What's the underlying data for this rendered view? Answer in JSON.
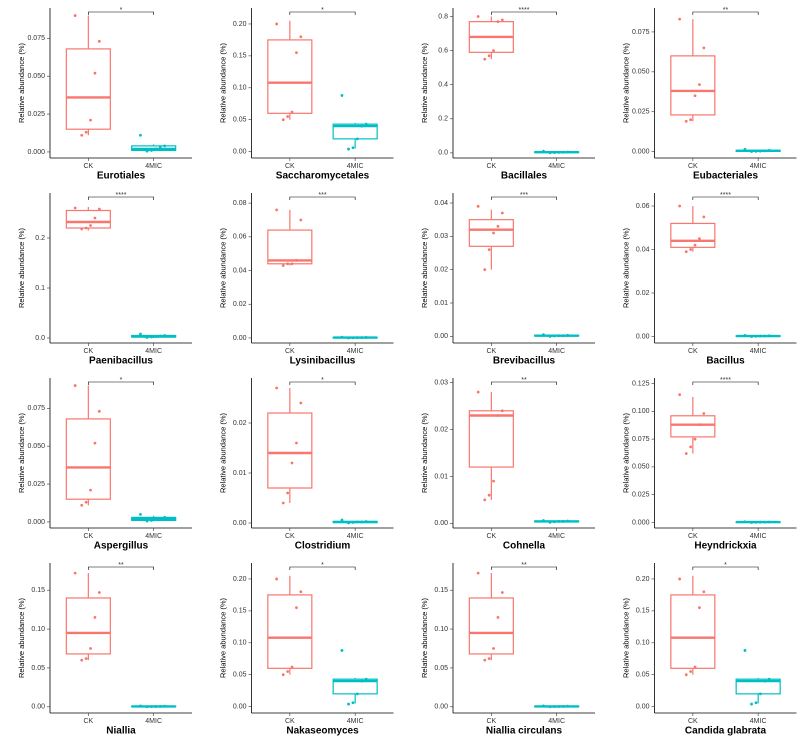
{
  "chart_data": [
    {
      "type": "box",
      "title": "Eurotiales",
      "y_label": "Relative abundance (%)",
      "categories": [
        "CK",
        "4MIC"
      ],
      "colors": [
        "#f8766d",
        "#00bfc4"
      ],
      "significance": "*",
      "ylim": [
        -0.004,
        0.095
      ],
      "yticks": [
        {
          "value": 0,
          "label": "0.000"
        },
        0.025,
        {
          "value": 0.05,
          "label": "0.050"
        },
        0.075
      ],
      "boxes": [
        {
          "min": 0.011,
          "q1": 0.015,
          "median": 0.036,
          "q3": 0.068,
          "max": 0.09,
          "points": [
            0.09,
            0.073,
            0.052,
            0.021,
            0.013,
            0.011
          ]
        },
        {
          "min": 0.0005,
          "q1": 0.001,
          "median": 0.002,
          "q3": 0.004,
          "max": 0.005,
          "points": [
            0.011,
            0.004,
            0.003,
            0.002,
            0.001,
            0.0005
          ]
        }
      ]
    },
    {
      "type": "box",
      "title": "Saccharomycetales",
      "y_label": "Relative abundance (%)",
      "categories": [
        "CK",
        "4MIC"
      ],
      "colors": [
        "#f8766d",
        "#00bfc4"
      ],
      "significance": "*",
      "ylim": [
        -0.01,
        0.225
      ],
      "yticks": [
        {
          "value": 0,
          "label": "0.00"
        },
        0.05,
        {
          "value": 0.1,
          "label": "0.10"
        },
        0.15,
        {
          "value": 0.2,
          "label": "0.20"
        }
      ],
      "boxes": [
        {
          "min": 0.05,
          "q1": 0.06,
          "median": 0.108,
          "q3": 0.175,
          "max": 0.205,
          "points": [
            0.2,
            0.18,
            0.155,
            0.062,
            0.055,
            0.05
          ]
        },
        {
          "min": 0.005,
          "q1": 0.02,
          "median": 0.04,
          "q3": 0.043,
          "max": 0.045,
          "points": [
            0.088,
            0.043,
            0.04,
            0.02,
            0.006,
            0.004
          ]
        }
      ]
    },
    {
      "type": "box",
      "title": "Bacillales",
      "y_label": "Relative abundance (%)",
      "categories": [
        "CK",
        "4MIC"
      ],
      "colors": [
        "#f8766d",
        "#00bfc4"
      ],
      "significance": "****",
      "ylim": [
        -0.03,
        0.85
      ],
      "yticks": [
        {
          "value": 0,
          "label": "0.0"
        },
        0.2,
        0.4,
        0.6,
        0.8
      ],
      "boxes": [
        {
          "min": 0.55,
          "q1": 0.59,
          "median": 0.68,
          "q3": 0.77,
          "max": 0.8,
          "points": [
            0.8,
            0.78,
            0.77,
            0.6,
            0.57,
            0.55
          ]
        },
        {
          "min": 0,
          "q1": 0.002,
          "median": 0.004,
          "q3": 0.006,
          "max": 0.008,
          "points": [
            0.01,
            0.005,
            0.004,
            0.003,
            0.002,
            0.001
          ]
        }
      ]
    },
    {
      "type": "box",
      "title": "Eubacteriales",
      "y_label": "Relative abundance (%)",
      "categories": [
        "CK",
        "4MIC"
      ],
      "colors": [
        "#f8766d",
        "#00bfc4"
      ],
      "significance": "**",
      "ylim": [
        -0.004,
        0.09
      ],
      "yticks": [
        {
          "value": 0,
          "label": "0.000"
        },
        0.025,
        {
          "value": 0.05,
          "label": "0.050"
        },
        0.075
      ],
      "boxes": [
        {
          "min": 0.019,
          "q1": 0.023,
          "median": 0.038,
          "q3": 0.06,
          "max": 0.083,
          "points": [
            0.083,
            0.065,
            0.042,
            0.035,
            0.02,
            0.019
          ]
        },
        {
          "min": 0,
          "q1": 0.0002,
          "median": 0.0005,
          "q3": 0.0008,
          "max": 0.001,
          "points": [
            0.0015,
            0.0008,
            0.0005,
            0.0003,
            0.0002,
            0.0001
          ]
        }
      ]
    },
    {
      "type": "box",
      "title": "Paenibacillus",
      "y_label": "Relative abundance (%)",
      "categories": [
        "CK",
        "4MIC"
      ],
      "colors": [
        "#f8766d",
        "#00bfc4"
      ],
      "significance": "****",
      "ylim": [
        -0.01,
        0.29
      ],
      "yticks": [
        {
          "value": 0,
          "label": "0.0"
        },
        0.1,
        0.2
      ],
      "boxes": [
        {
          "min": 0.215,
          "q1": 0.22,
          "median": 0.232,
          "q3": 0.255,
          "max": 0.262,
          "points": [
            0.26,
            0.258,
            0.24,
            0.225,
            0.22,
            0.218
          ]
        },
        {
          "min": 0,
          "q1": 0.002,
          "median": 0.003,
          "q3": 0.005,
          "max": 0.006,
          "points": [
            0.008,
            0.005,
            0.004,
            0.003,
            0.002,
            0.001
          ]
        }
      ]
    },
    {
      "type": "box",
      "title": "Lysinibacillus",
      "y_label": "Relative abundance (%)",
      "categories": [
        "CK",
        "4MIC"
      ],
      "colors": [
        "#f8766d",
        "#00bfc4"
      ],
      "significance": "***",
      "ylim": [
        -0.003,
        0.086
      ],
      "yticks": [
        {
          "value": 0,
          "label": "0.00"
        },
        0.02,
        0.04,
        0.06,
        0.08
      ],
      "boxes": [
        {
          "min": 0.043,
          "q1": 0.044,
          "median": 0.046,
          "q3": 0.064,
          "max": 0.076,
          "points": [
            0.076,
            0.07,
            0.046,
            0.044,
            0.044,
            0.043
          ]
        },
        {
          "min": 0,
          "q1": 0.0001,
          "median": 0.0002,
          "q3": 0.0003,
          "max": 0.0004,
          "points": [
            0.0005,
            0.0003,
            0.0002,
            0.0002,
            0.0001,
            0
          ]
        }
      ]
    },
    {
      "type": "box",
      "title": "Brevibacillus",
      "y_label": "Relative abundance (%)",
      "categories": [
        "CK",
        "4MIC"
      ],
      "colors": [
        "#f8766d",
        "#00bfc4"
      ],
      "significance": "***",
      "ylim": [
        -0.002,
        0.043
      ],
      "yticks": [
        {
          "value": 0,
          "label": "0.00"
        },
        0.01,
        0.02,
        0.03,
        0.04
      ],
      "boxes": [
        {
          "min": 0.02,
          "q1": 0.027,
          "median": 0.032,
          "q3": 0.035,
          "max": 0.038,
          "points": [
            0.039,
            0.037,
            0.033,
            0.031,
            0.026,
            0.02
          ]
        },
        {
          "min": 0,
          "q1": 0.0001,
          "median": 0.0002,
          "q3": 0.0003,
          "max": 0.0004,
          "points": [
            0.0005,
            0.0003,
            0.0002,
            0.0002,
            0.0001,
            0
          ]
        }
      ]
    },
    {
      "type": "box",
      "title": "Bacillus",
      "y_label": "Relative abundance (%)",
      "categories": [
        "CK",
        "4MIC"
      ],
      "colors": [
        "#f8766d",
        "#00bfc4"
      ],
      "significance": "****",
      "ylim": [
        -0.003,
        0.066
      ],
      "yticks": [
        {
          "value": 0,
          "label": "0.00"
        },
        0.02,
        0.04,
        0.06
      ],
      "boxes": [
        {
          "min": 0.039,
          "q1": 0.041,
          "median": 0.044,
          "q3": 0.052,
          "max": 0.06,
          "points": [
            0.06,
            0.055,
            0.045,
            0.042,
            0.04,
            0.039
          ]
        },
        {
          "min": 0,
          "q1": 0.0001,
          "median": 0.0002,
          "q3": 0.0003,
          "max": 0.0004,
          "points": [
            0.0005,
            0.0003,
            0.0002,
            0.0002,
            0.0001,
            0
          ]
        }
      ]
    },
    {
      "type": "box",
      "title": "Aspergillus",
      "y_label": "Relative abundance (%)",
      "categories": [
        "CK",
        "4MIC"
      ],
      "colors": [
        "#f8766d",
        "#00bfc4"
      ],
      "significance": "*",
      "ylim": [
        -0.004,
        0.095
      ],
      "yticks": [
        {
          "value": 0,
          "label": "0.000"
        },
        0.025,
        {
          "value": 0.05,
          "label": "0.050"
        },
        0.075
      ],
      "boxes": [
        {
          "min": 0.011,
          "q1": 0.015,
          "median": 0.036,
          "q3": 0.068,
          "max": 0.09,
          "points": [
            0.09,
            0.073,
            0.052,
            0.021,
            0.013,
            0.011
          ]
        },
        {
          "min": 0.0005,
          "q1": 0.001,
          "median": 0.002,
          "q3": 0.003,
          "max": 0.004,
          "points": [
            0.005,
            0.003,
            0.002,
            0.002,
            0.001,
            0.0005
          ]
        }
      ]
    },
    {
      "type": "box",
      "title": "Clostridium",
      "y_label": "Relative abundance (%)",
      "categories": [
        "CK",
        "4MIC"
      ],
      "colors": [
        "#f8766d",
        "#00bfc4"
      ],
      "significance": "*",
      "ylim": [
        -0.001,
        0.029
      ],
      "yticks": [
        {
          "value": 0,
          "label": "0.00"
        },
        0.01,
        0.02
      ],
      "boxes": [
        {
          "min": 0.004,
          "q1": 0.007,
          "median": 0.014,
          "q3": 0.022,
          "max": 0.027,
          "points": [
            0.027,
            0.024,
            0.016,
            0.012,
            0.006,
            0.004
          ]
        },
        {
          "min": 0,
          "q1": 0.0001,
          "median": 0.0002,
          "q3": 0.0003,
          "max": 0.0004,
          "points": [
            0.0006,
            0.0003,
            0.0002,
            0.0002,
            0.0001,
            0
          ]
        }
      ]
    },
    {
      "type": "box",
      "title": "Cohnella",
      "y_label": "Relative abundance (%)",
      "categories": [
        "CK",
        "4MIC"
      ],
      "colors": [
        "#f8766d",
        "#00bfc4"
      ],
      "significance": "**",
      "ylim": [
        -0.001,
        0.031
      ],
      "yticks": [
        {
          "value": 0,
          "label": "0.00"
        },
        0.01,
        0.02,
        0.03
      ],
      "boxes": [
        {
          "min": 0.005,
          "q1": 0.012,
          "median": 0.023,
          "q3": 0.024,
          "max": 0.028,
          "points": [
            0.028,
            0.024,
            0.023,
            0.009,
            0.006,
            0.005
          ]
        },
        {
          "min": 0.0002,
          "q1": 0.0003,
          "median": 0.0004,
          "q3": 0.0005,
          "max": 0.0006,
          "points": [
            0.0006,
            0.0005,
            0.0004,
            0.0004,
            0.0003,
            0.0002
          ]
        }
      ]
    },
    {
      "type": "box",
      "title": "Heyndrickxia",
      "y_label": "Relative abundance (%)",
      "categories": [
        "CK",
        "4MIC"
      ],
      "colors": [
        "#f8766d",
        "#00bfc4"
      ],
      "significance": "****",
      "ylim": [
        -0.005,
        0.13
      ],
      "yticks": [
        {
          "value": 0,
          "label": "0.000"
        },
        0.025,
        {
          "value": 0.05,
          "label": "0.050"
        },
        0.075,
        {
          "value": 0.1,
          "label": "0.100"
        },
        0.125
      ],
      "boxes": [
        {
          "min": 0.062,
          "q1": 0.077,
          "median": 0.088,
          "q3": 0.096,
          "max": 0.113,
          "points": [
            0.115,
            0.098,
            0.088,
            0.075,
            0.068,
            0.062
          ]
        },
        {
          "min": 0,
          "q1": 0.0002,
          "median": 0.0003,
          "q3": 0.0004,
          "max": 0.0005,
          "points": [
            0.0006,
            0.0004,
            0.0003,
            0.0003,
            0.0002,
            0
          ]
        }
      ]
    },
    {
      "type": "box",
      "title": "Niallia",
      "y_label": "Relative abundance (%)",
      "categories": [
        "CK",
        "4MIC"
      ],
      "colors": [
        "#f8766d",
        "#00bfc4"
      ],
      "significance": "**",
      "ylim": [
        -0.008,
        0.185
      ],
      "yticks": [
        {
          "value": 0,
          "label": "0.00"
        },
        0.05,
        {
          "value": 0.1,
          "label": "0.10"
        },
        0.15
      ],
      "boxes": [
        {
          "min": 0.06,
          "q1": 0.068,
          "median": 0.095,
          "q3": 0.14,
          "max": 0.172,
          "points": [
            0.172,
            0.147,
            0.115,
            0.075,
            0.062,
            0.06
          ]
        },
        {
          "min": 0,
          "q1": 0.0003,
          "median": 0.0005,
          "q3": 0.0008,
          "max": 0.001,
          "points": [
            0.0012,
            0.0008,
            0.0005,
            0.0004,
            0.0002,
            0
          ]
        }
      ]
    },
    {
      "type": "box",
      "title": "Nakaseomyces",
      "y_label": "Relative abundance (%)",
      "categories": [
        "CK",
        "4MIC"
      ],
      "colors": [
        "#f8766d",
        "#00bfc4"
      ],
      "significance": "*",
      "ylim": [
        -0.01,
        0.225
      ],
      "yticks": [
        {
          "value": 0,
          "label": "0.00"
        },
        0.05,
        {
          "value": 0.1,
          "label": "0.10"
        },
        0.15,
        {
          "value": 0.2,
          "label": "0.20"
        }
      ],
      "boxes": [
        {
          "min": 0.05,
          "q1": 0.06,
          "median": 0.108,
          "q3": 0.175,
          "max": 0.205,
          "points": [
            0.2,
            0.18,
            0.155,
            0.062,
            0.055,
            0.05
          ]
        },
        {
          "min": 0.005,
          "q1": 0.02,
          "median": 0.04,
          "q3": 0.043,
          "max": 0.045,
          "points": [
            0.088,
            0.043,
            0.04,
            0.02,
            0.006,
            0.004
          ]
        }
      ]
    },
    {
      "type": "box",
      "title": "Niallia circulans",
      "y_label": "Relative abundance (%)",
      "categories": [
        "CK",
        "4MIC"
      ],
      "colors": [
        "#f8766d",
        "#00bfc4"
      ],
      "significance": "**",
      "ylim": [
        -0.008,
        0.185
      ],
      "yticks": [
        {
          "value": 0,
          "label": "0.00"
        },
        0.05,
        {
          "value": 0.1,
          "label": "0.10"
        },
        0.15
      ],
      "boxes": [
        {
          "min": 0.06,
          "q1": 0.068,
          "median": 0.095,
          "q3": 0.14,
          "max": 0.172,
          "points": [
            0.172,
            0.147,
            0.115,
            0.075,
            0.062,
            0.06
          ]
        },
        {
          "min": 0,
          "q1": 0.0003,
          "median": 0.0005,
          "q3": 0.0008,
          "max": 0.001,
          "points": [
            0.0012,
            0.0008,
            0.0005,
            0.0004,
            0.0002,
            0
          ]
        }
      ]
    },
    {
      "type": "box",
      "title": "Candida glabrata",
      "y_label": "Relative abundance (%)",
      "categories": [
        "CK",
        "4MIC"
      ],
      "colors": [
        "#f8766d",
        "#00bfc4"
      ],
      "significance": "*",
      "ylim": [
        -0.01,
        0.225
      ],
      "yticks": [
        {
          "value": 0,
          "label": "0.00"
        },
        0.05,
        {
          "value": 0.1,
          "label": "0.10"
        },
        0.15,
        {
          "value": 0.2,
          "label": "0.20"
        }
      ],
      "boxes": [
        {
          "min": 0.05,
          "q1": 0.06,
          "median": 0.108,
          "q3": 0.175,
          "max": 0.205,
          "points": [
            0.2,
            0.18,
            0.155,
            0.062,
            0.055,
            0.05
          ]
        },
        {
          "min": 0.005,
          "q1": 0.02,
          "median": 0.04,
          "q3": 0.043,
          "max": 0.045,
          "points": [
            0.088,
            0.043,
            0.04,
            0.02,
            0.006,
            0.004
          ]
        }
      ]
    }
  ]
}
